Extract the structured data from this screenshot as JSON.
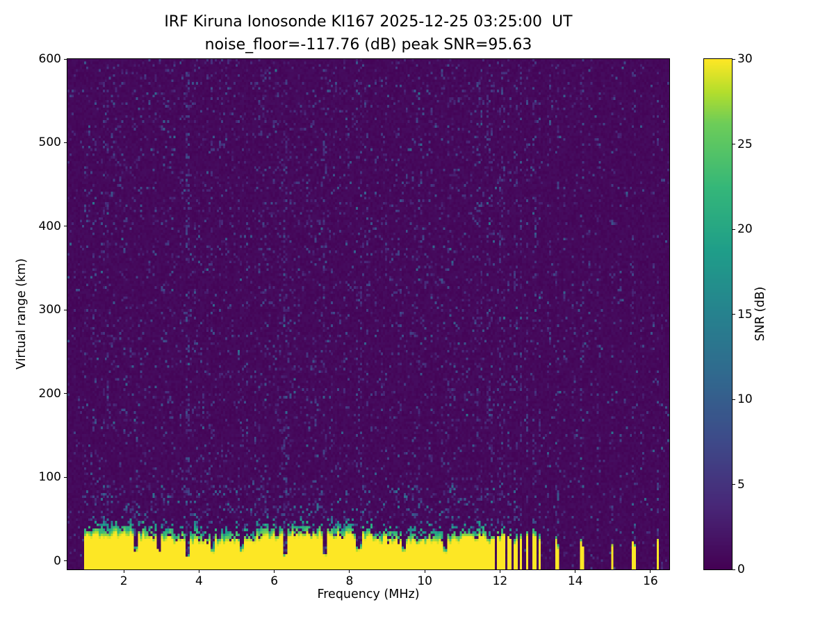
{
  "figure": {
    "title_line1": "IRF Kiruna Ionosonde KI167 2025-12-25 03:25:00  UT",
    "title_line2": "noise_floor=-117.76 (dB) peak SNR=95.63",
    "xlabel": "Frequency (MHz)",
    "ylabel": "Virtual range (km)",
    "colorbar_label": "SNR (dB)"
  },
  "chart_data": {
    "type": "heatmap",
    "title": "IRF Kiruna Ionosonde KI167 2025-12-25 03:25:00  UT",
    "subtitle": "noise_floor=-117.76 (dB) peak SNR=95.63",
    "station": "IRF Kiruna Ionosonde KI167",
    "timestamp_ut": "2025-12-25 03:25:00",
    "noise_floor_db": -117.76,
    "peak_snr_db": 95.63,
    "xlabel": "Frequency (MHz)",
    "ylabel": "Virtual range (km)",
    "x_range_mhz": [
      0.5,
      16.5
    ],
    "y_range_km": [
      -10,
      600
    ],
    "x_ticks": [
      2,
      4,
      6,
      8,
      10,
      12,
      14,
      16
    ],
    "y_ticks": [
      0,
      100,
      200,
      300,
      400,
      500,
      600
    ],
    "colorbar": {
      "label": "SNR (dB)",
      "min": 0,
      "max": 30,
      "ticks": [
        0,
        5,
        10,
        15,
        20,
        25,
        30
      ],
      "colormap": "viridis"
    },
    "description": "Ionogram: saturated ~30 dB ground-clutter band from below 0 km up to ~25-30 km virtual range across the swept band ~0.95-11.6 MHz with narrow notched gaps; discrete narrow transmission bars 11.7-13.1 MHz and isolated bars near 13.5, 14.2, 15.0, 15.5, 16.2 MHz; faint blue speckle noise over a dark purple background with vertical noise striping above 11.6 MHz.",
    "render": {
      "seed": 1167,
      "grid_cols": 290,
      "grid_rows": 200,
      "data_start_mhz": 0.95,
      "sweep_end_mhz": 11.62,
      "band_top_km": 26,
      "deep_notches_mhz": [
        3.72,
        6.3,
        7.32
      ],
      "shallow_notches_mhz": [
        2.32,
        2.92,
        4.38,
        5.15,
        8.25,
        9.45,
        10.55
      ],
      "bar_cluster_mhz": [
        11.7,
        11.82,
        11.96,
        12.1,
        12.24,
        12.4,
        12.56,
        12.72,
        12.9,
        13.05
      ],
      "isolated_bars_mhz": [
        13.5,
        14.2,
        14.98,
        15.55,
        16.2
      ],
      "faint_stripes_mhz": [
        13.3,
        13.72,
        13.95,
        14.4,
        14.62,
        15.2,
        15.78,
        16.05
      ]
    }
  },
  "colors": {
    "background": "#ffffff",
    "text": "#000000",
    "cmap_low": "#440154",
    "cmap_high": "#fde725"
  },
  "viridis_stops": [
    [
      0.0,
      68,
      1,
      84
    ],
    [
      0.125,
      72,
      40,
      120
    ],
    [
      0.25,
      62,
      74,
      137
    ],
    [
      0.375,
      49,
      104,
      142
    ],
    [
      0.5,
      38,
      130,
      142
    ],
    [
      0.625,
      31,
      158,
      137
    ],
    [
      0.75,
      53,
      183,
      121
    ],
    [
      0.875,
      109,
      205,
      89
    ],
    [
      0.9375,
      180,
      222,
      44
    ],
    [
      1.0,
      253,
      231,
      37
    ]
  ]
}
